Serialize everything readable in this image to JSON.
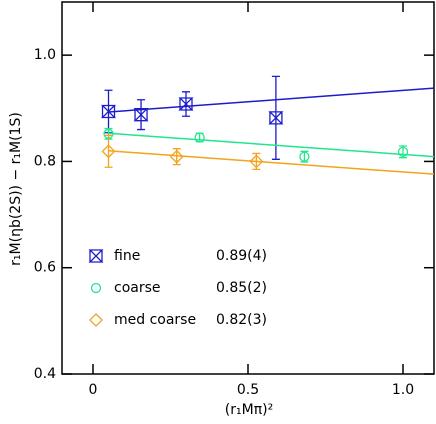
{
  "chart_data": {
    "type": "scatter",
    "xlabel": "(r₁Mπ)²",
    "ylabel": "r₁M(ηb(2S)) − r₁M(1S)",
    "xlim": [
      -0.1,
      1.1
    ],
    "ylim": [
      0.4,
      1.1
    ],
    "xticks": [
      0,
      0.5,
      {
        "value": 1,
        "label": "1.0"
      }
    ],
    "yticks": [
      0.4,
      0.6,
      0.8,
      {
        "value": 1,
        "label": "1.0"
      }
    ],
    "series": [
      {
        "name": "fine",
        "color": "#1c1ccc",
        "marker": "star",
        "result": "0.89(4)",
        "x": [
          0.05,
          0.155,
          0.3,
          0.59
        ],
        "values": [
          0.894,
          0.888,
          0.908,
          0.882
        ],
        "errors": [
          0.04,
          0.028,
          0.023,
          0.078
        ],
        "fit": {
          "x": [
            0.05,
            1.1
          ],
          "values": [
            0.893,
            0.938
          ]
        }
      },
      {
        "name": "coarse",
        "color": "#22e68c",
        "marker": "circle",
        "result": "0.85(2)",
        "x": [
          0.05,
          0.344,
          0.682,
          1.0
        ],
        "values": [
          0.852,
          0.845,
          0.809,
          0.818
        ],
        "errors": [
          0.01,
          0.008,
          0.01,
          0.011
        ],
        "fit": {
          "x": [
            0.05,
            1.1
          ],
          "values": [
            0.853,
            0.809
          ]
        }
      },
      {
        "name": "med coarse",
        "color": "#f5a21c",
        "marker": "diamond",
        "result": "0.82(3)",
        "x": [
          0.05,
          0.27,
          0.527
        ],
        "values": [
          0.819,
          0.809,
          0.8
        ],
        "errors": [
          0.03,
          0.015,
          0.015
        ],
        "fit": {
          "x": [
            0.05,
            1.1
          ],
          "values": [
            0.82,
            0.776
          ]
        }
      }
    ]
  }
}
